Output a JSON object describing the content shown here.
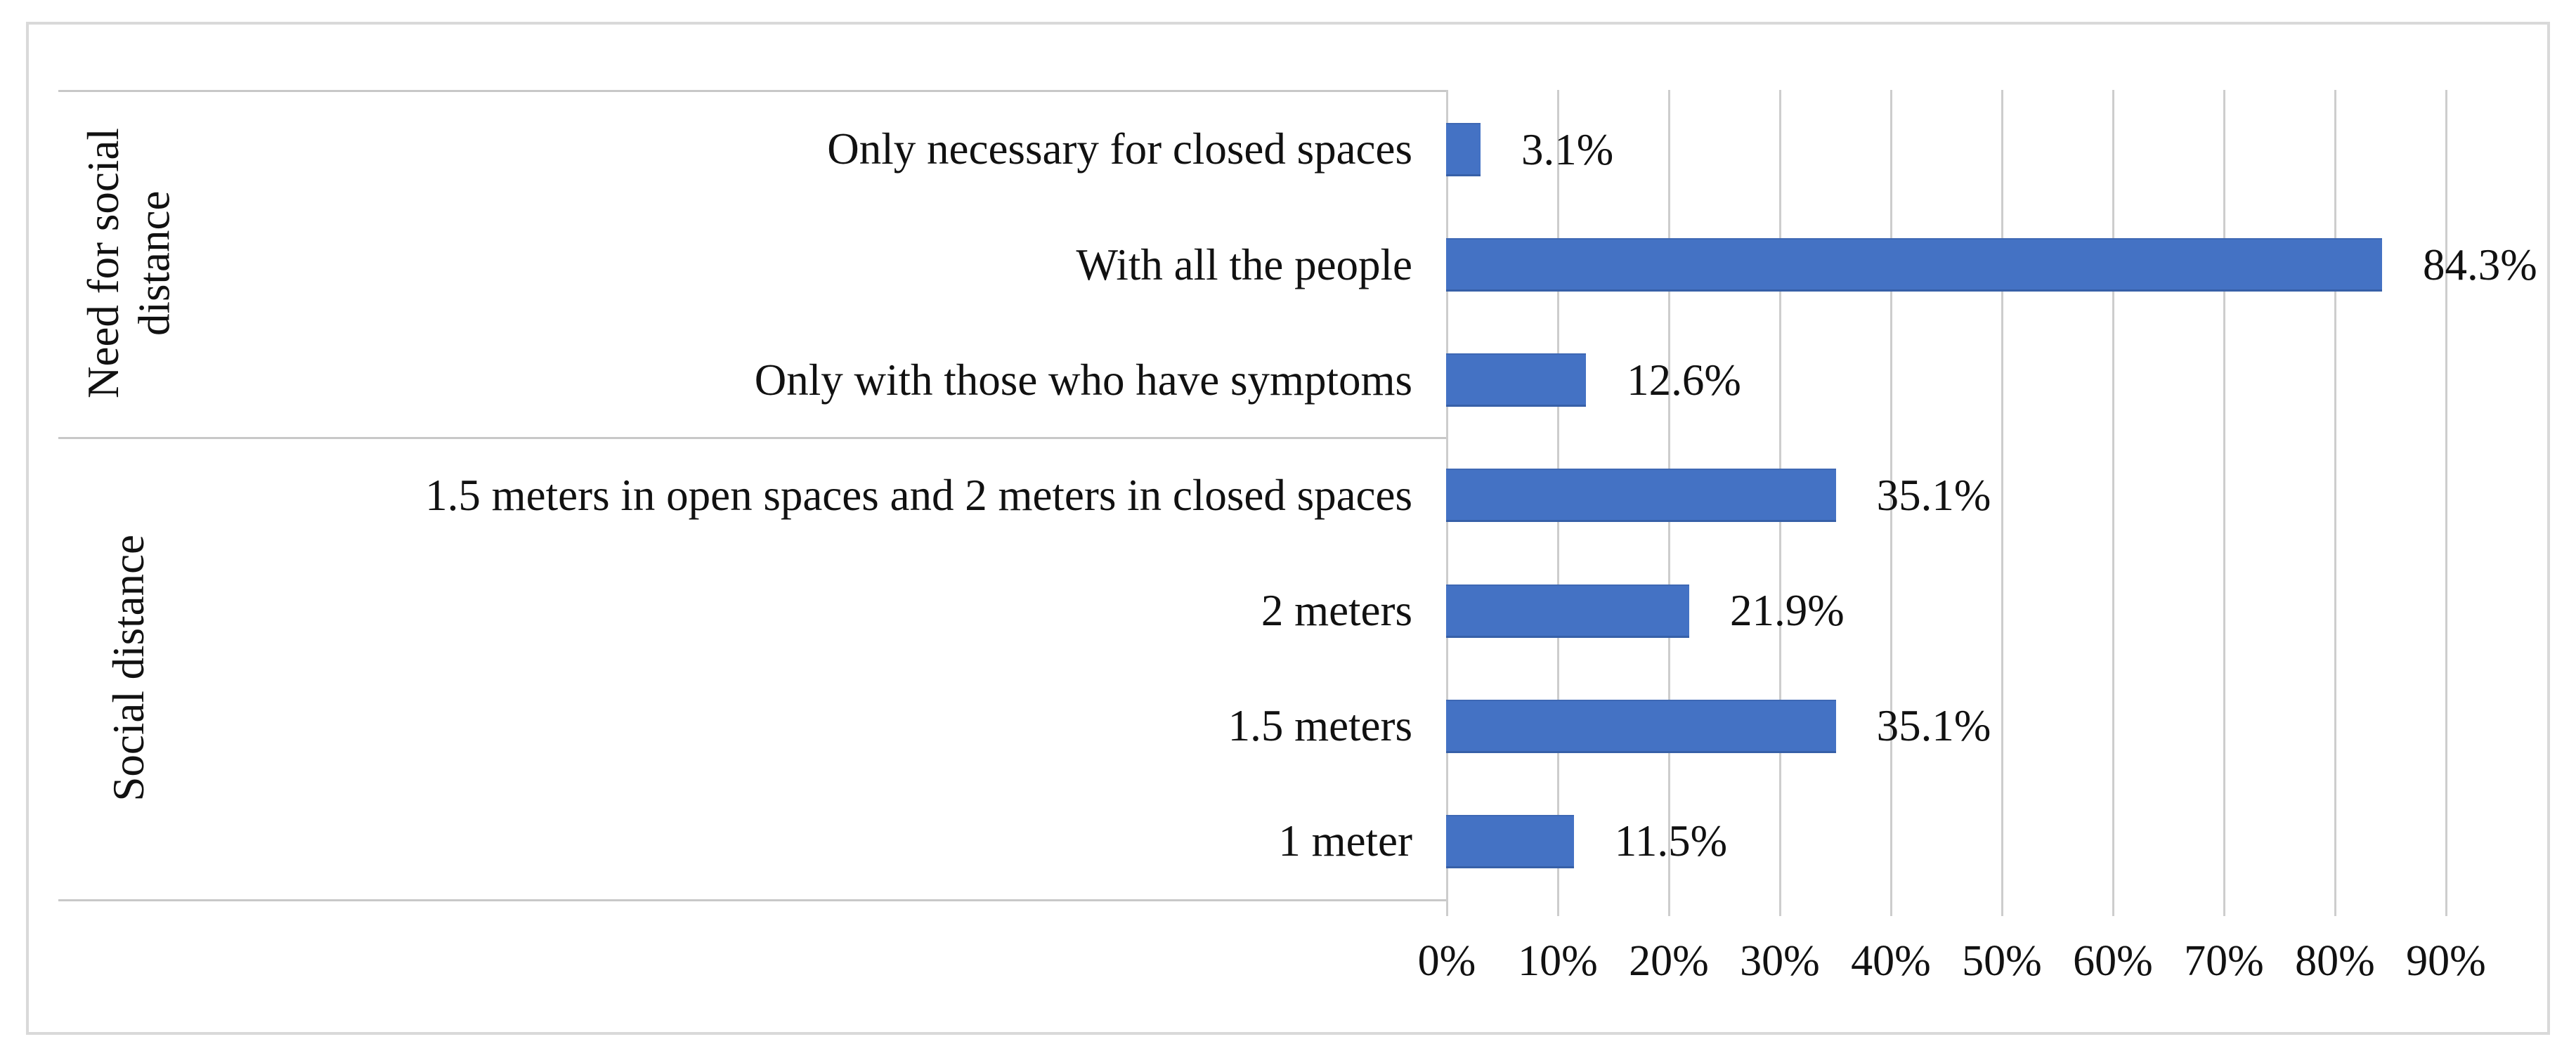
{
  "chart_data": {
    "type": "bar",
    "orientation": "horizontal",
    "title": "",
    "xlabel": "",
    "ylabel": "",
    "xlim": [
      0,
      90
    ],
    "x_ticks": [
      "0%",
      "10%",
      "20%",
      "30%",
      "40%",
      "50%",
      "60%",
      "70%",
      "80%",
      "90%"
    ],
    "grid": "vertical-gridlines",
    "legend_position": "none",
    "bar_color": "#4472C4",
    "groups": [
      {
        "label": "Need for social distance",
        "categories": [
          "Only necessary for closed spaces",
          "With all the people",
          "Only with those who have symptoms"
        ],
        "values": [
          3.1,
          84.3,
          12.6
        ],
        "value_labels": [
          "3.1%",
          "84.3%",
          "12.6%"
        ]
      },
      {
        "label": "Social distance",
        "categories": [
          "1.5 meters in open spaces and 2 meters in closed spaces",
          "2 meters",
          "1.5 meters",
          "1 meter"
        ],
        "values": [
          35.1,
          21.9,
          35.1,
          11.5
        ],
        "value_labels": [
          "35.1%",
          "21.9%",
          "35.1%",
          "11.5%"
        ]
      }
    ]
  },
  "colors": {
    "bar": "#4472C4",
    "gridline": "#CDCDCD",
    "table_line": "#C8C8C8",
    "frame_border": "#D9D9D9",
    "text": "#111111",
    "background": "#FFFFFF"
  }
}
